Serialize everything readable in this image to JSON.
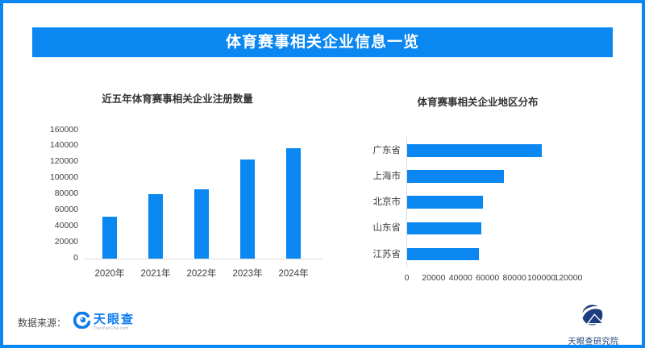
{
  "header": {
    "title": "体育赛事相关企业信息一览"
  },
  "theme": {
    "primary_blue": "#0a87f0",
    "banner_text": "#ffffff",
    "title_text": "#333333",
    "axis_text": "#404040",
    "axis_line": "#d9d9d9",
    "institute_navy": "#1d3e7e",
    "tyc_logo_blue": "#0a7bf0"
  },
  "chart_data": [
    {
      "type": "bar",
      "orientation": "vertical",
      "title": "近五年体育赛事相关企业注册数量",
      "categories": [
        "2020年",
        "2021年",
        "2022年",
        "2023年",
        "2024年"
      ],
      "values": [
        52000,
        80000,
        86000,
        123000,
        137000
      ],
      "xlabel": "",
      "ylabel": "",
      "ylim": [
        0,
        160000
      ],
      "ytick_step": 20000,
      "grid": false,
      "legend": false,
      "bar_color": "#0a87f0"
    },
    {
      "type": "bar",
      "orientation": "horizontal",
      "title": "体育赛事相关企业地区分布",
      "categories": [
        "广东省",
        "上海市",
        "北京市",
        "山东省",
        "江苏省"
      ],
      "values": [
        100000,
        72000,
        56000,
        55000,
        53000
      ],
      "xlabel": "",
      "ylabel": "",
      "xlim": [
        0,
        120000
      ],
      "xtick_step": 20000,
      "grid": false,
      "legend": false,
      "bar_color": "#0a87f0"
    }
  ],
  "footer": {
    "source_label": "数据来源：",
    "source_logo_text": "天眼查",
    "source_logo_subtext": "TianYanCha.com",
    "institute_label": "天眼查研究院"
  }
}
